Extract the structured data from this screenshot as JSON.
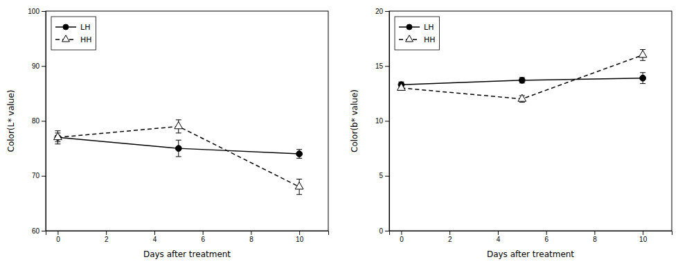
{
  "chart_data": [
    {
      "type": "line",
      "xlabel": "Days after treatment",
      "ylabel": "Color(L* value)",
      "x": [
        0,
        5,
        10
      ],
      "xlim": [
        -0.5,
        11.2
      ],
      "xticks": [
        0,
        2,
        4,
        6,
        8,
        10
      ],
      "ylim": [
        60,
        100
      ],
      "yticks": [
        60,
        70,
        80,
        90,
        100
      ],
      "legend": "upper left",
      "series": [
        {
          "name": "LH",
          "color": "black",
          "marker": "circle",
          "line_style": "solid",
          "values": [
            77.0,
            75.0,
            74.0
          ],
          "errors": [
            1.2,
            1.5,
            0.8
          ]
        },
        {
          "name": "HH",
          "color": "black",
          "marker": "open-triangle",
          "line_style": "dashed",
          "values": [
            77.0,
            79.0,
            68.0
          ],
          "errors": [
            0.8,
            1.2,
            1.4
          ]
        }
      ]
    },
    {
      "type": "line",
      "xlabel": "Days after treatment",
      "ylabel": "Color(b* value)",
      "x": [
        0,
        5,
        10
      ],
      "xlim": [
        -0.5,
        11.2
      ],
      "xticks": [
        0,
        2,
        4,
        6,
        8,
        10
      ],
      "ylim": [
        0,
        20
      ],
      "yticks": [
        0,
        5,
        10,
        15,
        20
      ],
      "legend": "upper left",
      "series": [
        {
          "name": "LH",
          "color": "black",
          "marker": "circle",
          "line_style": "solid",
          "values": [
            13.3,
            13.7,
            13.9
          ],
          "errors": [
            0.25,
            0.25,
            0.5
          ]
        },
        {
          "name": "HH",
          "color": "black",
          "marker": "open-triangle",
          "line_style": "dashed",
          "values": [
            13.0,
            12.0,
            16.0
          ],
          "errors": [
            0.2,
            0.3,
            0.5
          ]
        }
      ]
    }
  ]
}
